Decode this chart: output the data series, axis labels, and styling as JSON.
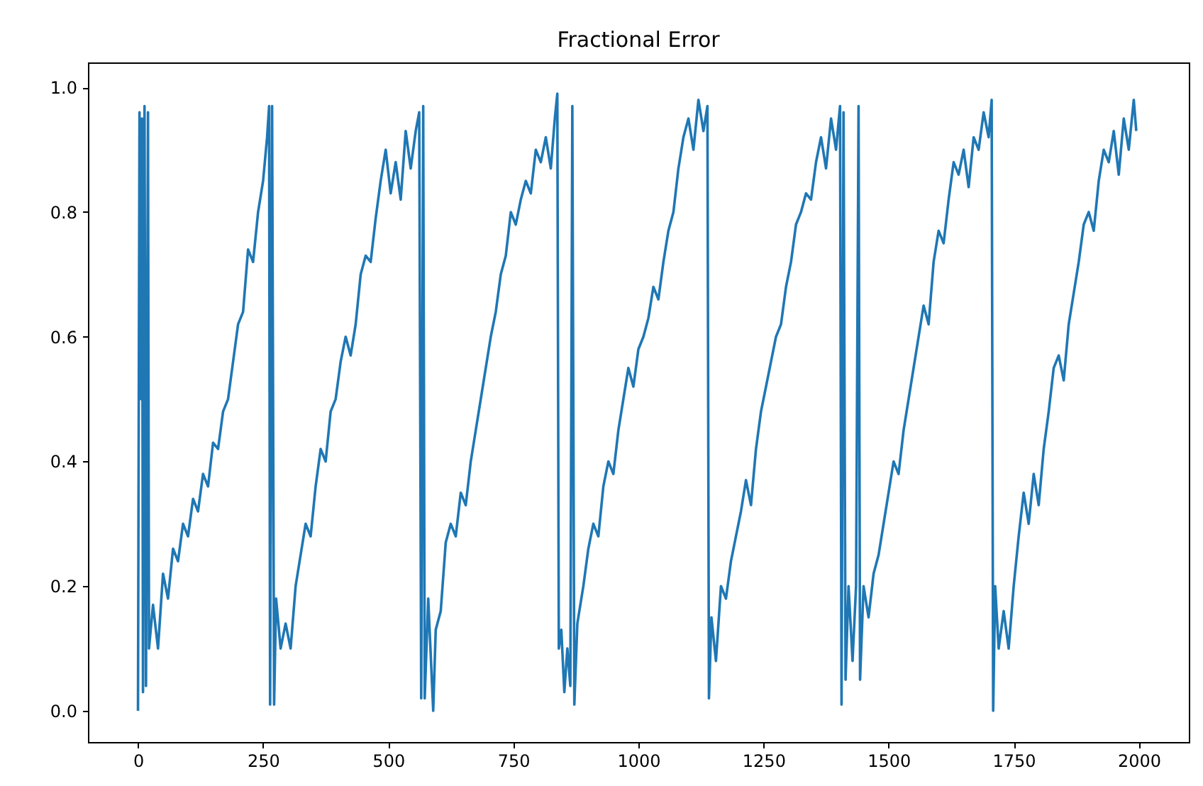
{
  "chart_data": {
    "type": "line",
    "title": "Fractional Error",
    "color": "#1f77b4",
    "xlim": [
      -100,
      2100
    ],
    "xticks": [
      0,
      250,
      500,
      750,
      1000,
      1250,
      1500,
      1750,
      2000
    ],
    "ylim": [
      -0.05,
      1.04
    ],
    "yticks": [
      {
        "value": 0,
        "label": "0.0"
      },
      0.2,
      0.4,
      0.6,
      0.8,
      {
        "value": 1,
        "label": "1.0"
      }
    ],
    "x": [
      0,
      3,
      6,
      8,
      10,
      13,
      16,
      20,
      22,
      30,
      40,
      50,
      60,
      70,
      80,
      90,
      100,
      110,
      120,
      130,
      140,
      150,
      160,
      170,
      180,
      190,
      200,
      210,
      220,
      230,
      240,
      250,
      258,
      262,
      264,
      268,
      272,
      276,
      285,
      295,
      305,
      315,
      325,
      335,
      345,
      355,
      365,
      375,
      385,
      395,
      405,
      415,
      425,
      435,
      445,
      455,
      465,
      475,
      485,
      495,
      505,
      515,
      525,
      535,
      545,
      555,
      562,
      566,
      570,
      573,
      580,
      590,
      595,
      605,
      615,
      625,
      635,
      645,
      655,
      665,
      675,
      685,
      695,
      705,
      715,
      725,
      735,
      745,
      755,
      765,
      775,
      785,
      795,
      805,
      815,
      825,
      833,
      838,
      841,
      846,
      852,
      858,
      864,
      868,
      872,
      878,
      890,
      900,
      910,
      920,
      930,
      940,
      950,
      960,
      970,
      980,
      990,
      1000,
      1010,
      1020,
      1030,
      1040,
      1050,
      1060,
      1070,
      1080,
      1090,
      1100,
      1110,
      1120,
      1130,
      1138,
      1141,
      1146,
      1155,
      1165,
      1175,
      1185,
      1195,
      1205,
      1215,
      1225,
      1235,
      1245,
      1255,
      1265,
      1275,
      1285,
      1295,
      1305,
      1315,
      1325,
      1335,
      1345,
      1355,
      1365,
      1375,
      1385,
      1395,
      1403,
      1406,
      1410,
      1414,
      1420,
      1428,
      1435,
      1440,
      1443,
      1450,
      1460,
      1470,
      1480,
      1490,
      1500,
      1510,
      1520,
      1530,
      1540,
      1550,
      1560,
      1570,
      1580,
      1590,
      1600,
      1610,
      1620,
      1630,
      1640,
      1650,
      1660,
      1670,
      1680,
      1690,
      1700,
      1706,
      1709,
      1713,
      1720,
      1730,
      1740,
      1750,
      1760,
      1770,
      1780,
      1790,
      1800,
      1810,
      1820,
      1830,
      1840,
      1850,
      1860,
      1870,
      1880,
      1890,
      1900,
      1910,
      1920,
      1930,
      1940,
      1950,
      1960,
      1970,
      1980,
      1990,
      1995
    ],
    "values": [
      0.0,
      0.96,
      0.5,
      0.95,
      0.03,
      0.97,
      0.04,
      0.96,
      0.1,
      0.17,
      0.1,
      0.22,
      0.18,
      0.26,
      0.24,
      0.3,
      0.28,
      0.34,
      0.32,
      0.38,
      0.36,
      0.43,
      0.42,
      0.48,
      0.5,
      0.56,
      0.62,
      0.64,
      0.74,
      0.72,
      0.8,
      0.85,
      0.92,
      0.97,
      0.01,
      0.97,
      0.01,
      0.18,
      0.1,
      0.14,
      0.1,
      0.2,
      0.25,
      0.3,
      0.28,
      0.36,
      0.42,
      0.4,
      0.48,
      0.5,
      0.56,
      0.6,
      0.57,
      0.62,
      0.7,
      0.73,
      0.72,
      0.79,
      0.85,
      0.9,
      0.83,
      0.88,
      0.82,
      0.93,
      0.87,
      0.93,
      0.96,
      0.02,
      0.97,
      0.02,
      0.18,
      0.0,
      0.13,
      0.16,
      0.27,
      0.3,
      0.28,
      0.35,
      0.33,
      0.4,
      0.45,
      0.5,
      0.55,
      0.6,
      0.64,
      0.7,
      0.73,
      0.8,
      0.78,
      0.82,
      0.85,
      0.83,
      0.9,
      0.88,
      0.92,
      0.87,
      0.95,
      0.99,
      0.1,
      0.13,
      0.03,
      0.1,
      0.04,
      0.97,
      0.01,
      0.14,
      0.2,
      0.26,
      0.3,
      0.28,
      0.36,
      0.4,
      0.38,
      0.45,
      0.5,
      0.55,
      0.52,
      0.58,
      0.6,
      0.63,
      0.68,
      0.66,
      0.72,
      0.77,
      0.8,
      0.87,
      0.92,
      0.95,
      0.9,
      0.98,
      0.93,
      0.97,
      0.02,
      0.15,
      0.08,
      0.2,
      0.18,
      0.24,
      0.28,
      0.32,
      0.37,
      0.33,
      0.42,
      0.48,
      0.52,
      0.56,
      0.6,
      0.62,
      0.68,
      0.72,
      0.78,
      0.8,
      0.83,
      0.82,
      0.88,
      0.92,
      0.87,
      0.95,
      0.9,
      0.97,
      0.01,
      0.96,
      0.05,
      0.2,
      0.08,
      0.2,
      0.97,
      0.05,
      0.2,
      0.15,
      0.22,
      0.25,
      0.3,
      0.35,
      0.4,
      0.38,
      0.45,
      0.5,
      0.55,
      0.6,
      0.65,
      0.62,
      0.72,
      0.77,
      0.75,
      0.82,
      0.88,
      0.86,
      0.9,
      0.84,
      0.92,
      0.9,
      0.96,
      0.92,
      0.98,
      0.0,
      0.2,
      0.1,
      0.16,
      0.1,
      0.2,
      0.28,
      0.35,
      0.3,
      0.38,
      0.33,
      0.42,
      0.48,
      0.55,
      0.57,
      0.53,
      0.62,
      0.67,
      0.72,
      0.78,
      0.8,
      0.77,
      0.85,
      0.9,
      0.88,
      0.93,
      0.86,
      0.95,
      0.9,
      0.98,
      0.93
    ]
  }
}
